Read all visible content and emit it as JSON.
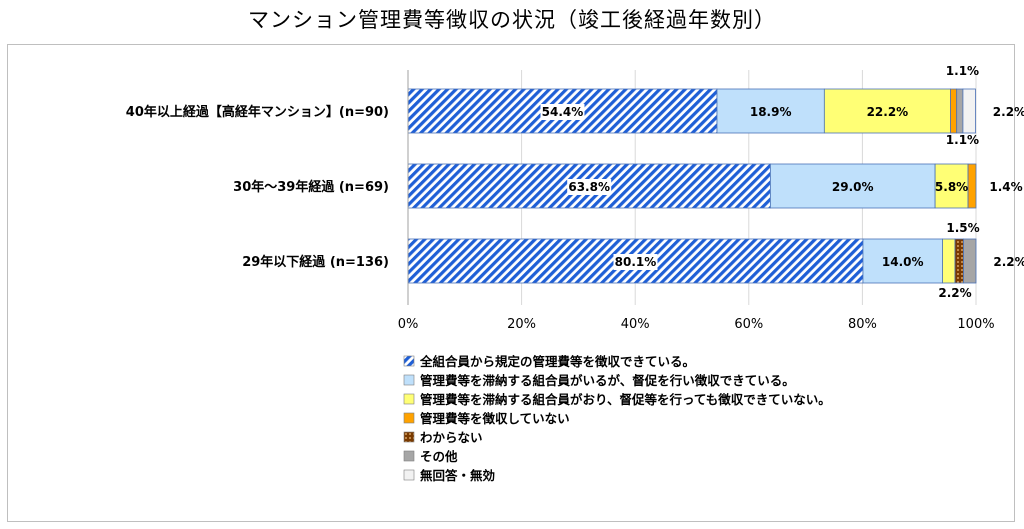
{
  "title": "マンション管理費等徴収の状況（竣工後経過年数別）",
  "chart_data": {
    "type": "bar",
    "orientation": "horizontal",
    "stacked": true,
    "title": "マンション管理費等徴収の状況（竣工後経過年数別）",
    "categories": [
      "40年以上経過【高経年マンション】(n=90)",
      "30年～39年経過 (n=69)",
      "29年以下経過 (n=136)"
    ],
    "series": [
      {
        "name": "全組合員から規定の管理費等を徴収できている。",
        "values": [
          54.4,
          63.8,
          80.1
        ],
        "labels": [
          "54.4%",
          "63.8%",
          "80.1%"
        ],
        "color": "#1f5fd6",
        "pattern": "diagonal-hatch"
      },
      {
        "name": "管理費等を滞納する組合員がいるが、督促を行い徴収できている。",
        "values": [
          18.9,
          29.0,
          14.0
        ],
        "labels": [
          "18.9%",
          "29.0%",
          "14.0%"
        ],
        "color": "#bfe0fb"
      },
      {
        "name": "管理費等を滞納する組合員がおり、督促等を行っても徴収できていない。",
        "values": [
          22.2,
          5.8,
          2.2
        ],
        "labels": [
          "22.2%",
          "5.8%",
          "2.2%"
        ],
        "color": "#ffff75"
      },
      {
        "name": "管理費等を徴収していない",
        "values": [
          1.1,
          1.4,
          0.0
        ],
        "labels": [
          "1.1%",
          "1.4%",
          ""
        ],
        "color": "#ffa200"
      },
      {
        "name": "わからない",
        "values": [
          0.0,
          0.0,
          1.5
        ],
        "labels": [
          "",
          "",
          "1.5%"
        ],
        "color": "#7a3a00",
        "pattern": "dots"
      },
      {
        "name": "その他",
        "values": [
          1.1,
          0.0,
          2.2
        ],
        "labels": [
          "1.1%",
          "",
          "2.2%"
        ],
        "color": "#a6a6a6"
      },
      {
        "name": "無回答・無効",
        "values": [
          2.2,
          0.0,
          0.0
        ],
        "labels": [
          "2.2%",
          "",
          ""
        ],
        "color": "#f2f2f2"
      }
    ],
    "xlim": [
      0,
      100
    ],
    "xticks": [
      "0%",
      "20%",
      "40%",
      "60%",
      "80%",
      "100%"
    ],
    "grid": "vertical",
    "legend": "bottom"
  }
}
